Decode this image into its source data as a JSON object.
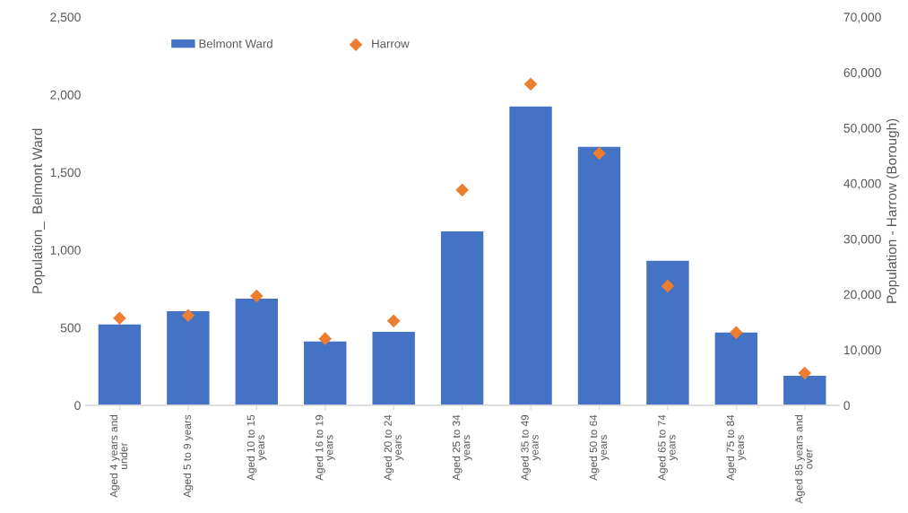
{
  "chart_data": {
    "type": "bar",
    "ylabel": "Population_  Belmont Ward",
    "y2label": "Population - Harrow (Borough)",
    "categories": [
      "Aged 4 years and\nunder",
      "Aged 5 to 9 years",
      "Aged 10 to 15\nyears",
      "Aged 16 to 19\nyears",
      "Aged 20 to 24\nyears",
      "Aged 25 to 34\nyears",
      "Aged 35 to 49\nyears",
      "Aged 50 to 64\nyears",
      "Aged 65 to 74\nyears",
      "Aged 75 to 84\nyears",
      "Aged 85 years and\nover"
    ],
    "series": [
      {
        "name": "Belmont Ward",
        "color": "#4472c4",
        "values": [
          520,
          606,
          687,
          410,
          473,
          1120,
          1923,
          1663,
          930,
          468,
          190
        ]
      },
      {
        "name": "Harrow",
        "type": "scatter",
        "axis": "y2",
        "marker": "diamond",
        "color": "#ed7d31",
        "values": [
          15700,
          16200,
          19700,
          12000,
          15200,
          38800,
          57900,
          45400,
          21500,
          13100,
          5800
        ]
      }
    ],
    "ylim": [
      0,
      2500
    ],
    "yticks": [
      {
        "value": 0,
        "label": "0"
      },
      {
        "value": 500,
        "label": "500"
      },
      {
        "value": 1000,
        "label": "1,000"
      },
      {
        "value": 1500,
        "label": "1,500"
      },
      {
        "value": 2000,
        "label": "2,000"
      },
      {
        "value": 2500,
        "label": "2,500"
      }
    ],
    "y2lim": [
      0,
      70000
    ],
    "y2ticks": [
      {
        "value": 0,
        "label": "0"
      },
      {
        "value": 10000,
        "label": "10,000"
      },
      {
        "value": 20000,
        "label": "20,000"
      },
      {
        "value": 30000,
        "label": "30,000"
      },
      {
        "value": 40000,
        "label": "40,000"
      },
      {
        "value": 50000,
        "label": "50,000"
      },
      {
        "value": 60000,
        "label": "60,000"
      },
      {
        "value": 70000,
        "label": "70,000"
      }
    ],
    "grid": false,
    "legend": "top left"
  }
}
